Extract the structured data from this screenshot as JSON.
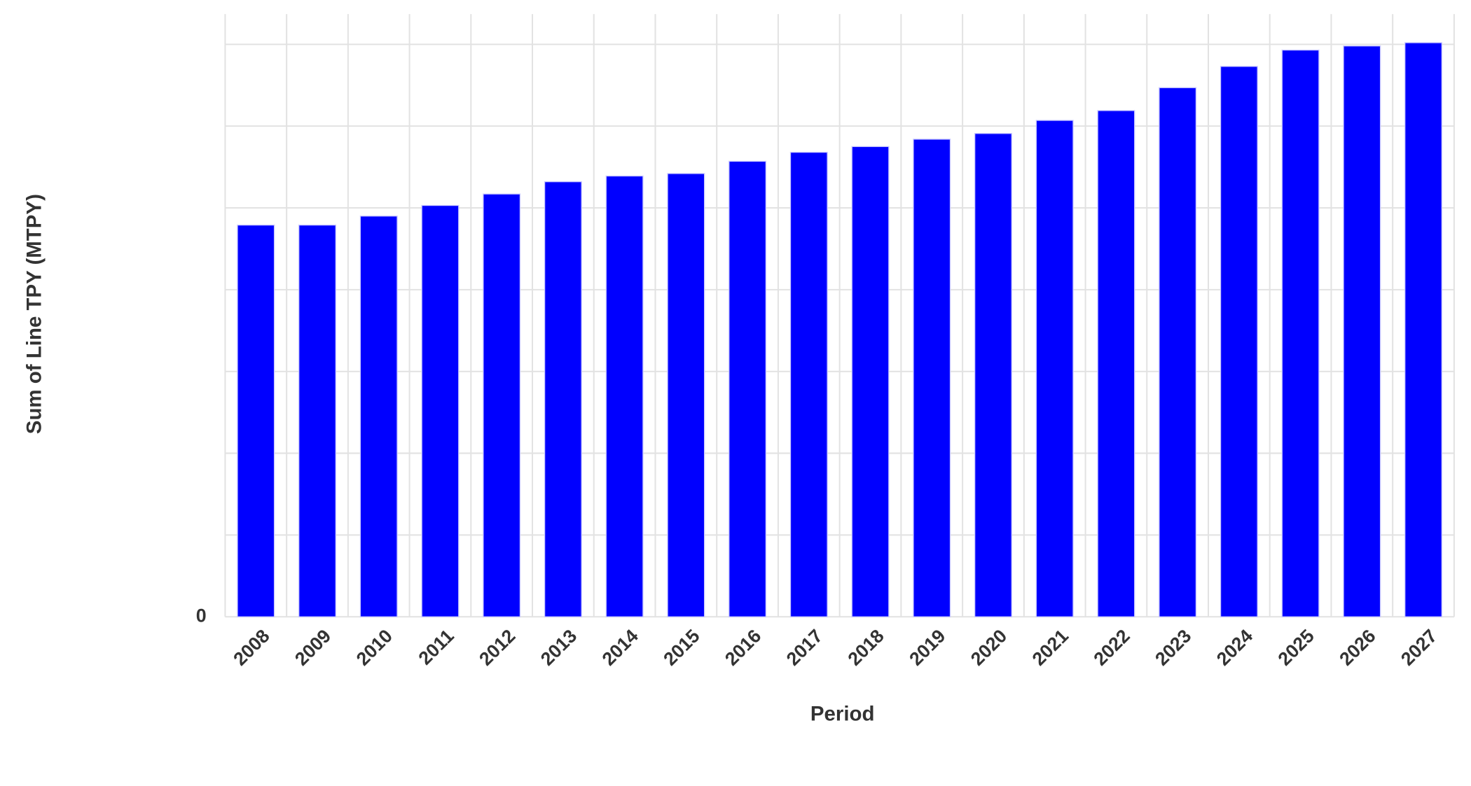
{
  "chart_data": {
    "type": "bar",
    "x_label": "Period",
    "y_label": "Sum of Line TPY (MTPY)",
    "categories": [
      "2008",
      "2009",
      "2010",
      "2011",
      "2012",
      "2013",
      "2014",
      "2015",
      "2016",
      "2017",
      "2018",
      "2019",
      "2020",
      "2021",
      "2022",
      "2023",
      "2024",
      "2025",
      "2026",
      "2027"
    ],
    "values": [
      4.79,
      4.79,
      4.9,
      5.03,
      5.17,
      5.32,
      5.39,
      5.42,
      5.57,
      5.68,
      5.75,
      5.84,
      5.91,
      6.07,
      6.19,
      6.47,
      6.73,
      6.93,
      6.98,
      7.02
    ],
    "color": "#0000ff",
    "ylim": [
      0,
      7.37
    ],
    "yticks": [
      0
    ],
    "grid_lines": [
      0,
      1,
      2,
      3,
      4,
      5,
      6,
      7
    ],
    "grid": true
  }
}
